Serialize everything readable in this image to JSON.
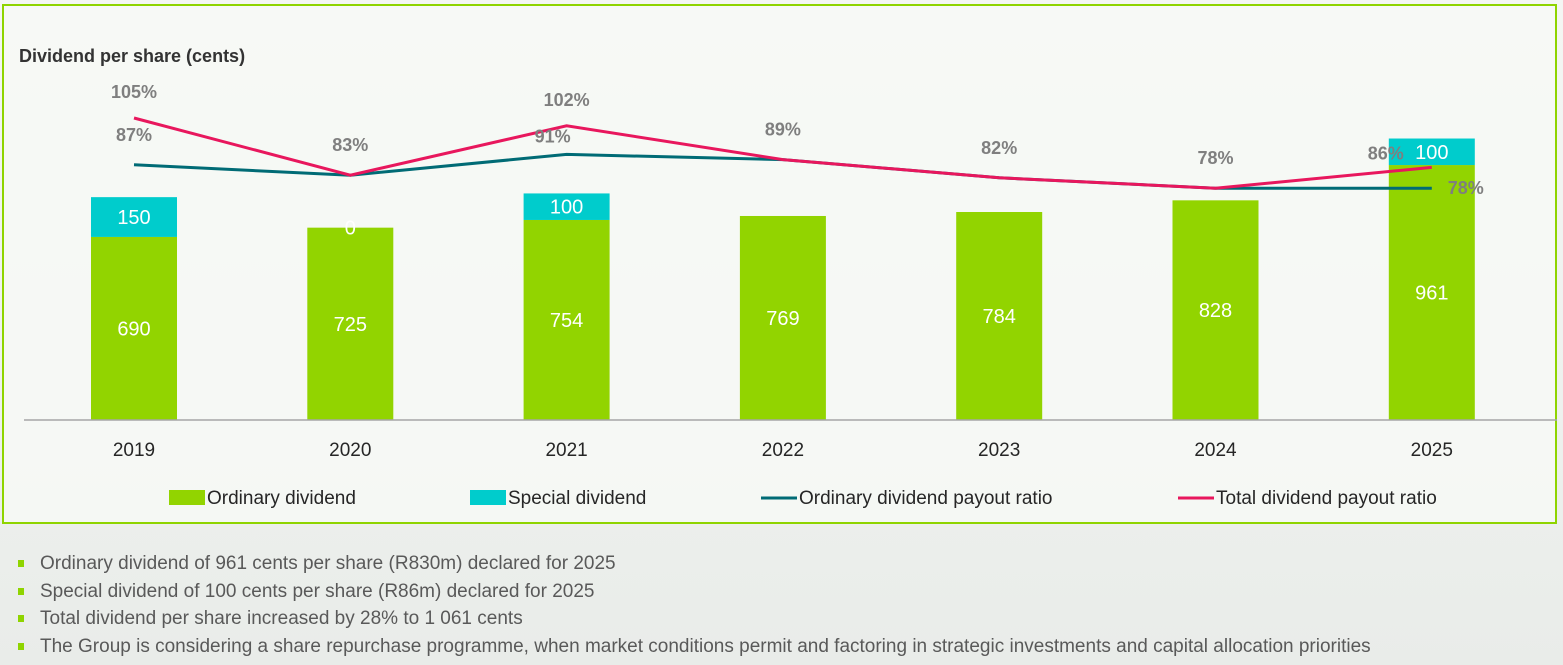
{
  "chart_data": {
    "type": "bar",
    "title": "Dividend per share (cents)",
    "categories": [
      "2019",
      "2020",
      "2021",
      "2022",
      "2023",
      "2024",
      "2025"
    ],
    "series": [
      {
        "name": "Ordinary dividend",
        "kind": "bar",
        "color": "#92d400",
        "values": [
          690,
          725,
          754,
          769,
          784,
          828,
          961
        ],
        "labels": [
          "690",
          "725",
          "754",
          "769",
          "784",
          "828",
          "961"
        ]
      },
      {
        "name": "Special dividend",
        "kind": "bar",
        "color": "#00cccc",
        "values": [
          150,
          0,
          100,
          0,
          0,
          0,
          100
        ],
        "labels": [
          "150",
          "0",
          "100",
          "",
          "",
          "",
          "100"
        ]
      },
      {
        "name": "Ordinary dividend payout ratio",
        "kind": "line",
        "color": "#006b75",
        "values": [
          87,
          83,
          91,
          89,
          82,
          78,
          78
        ],
        "labels": [
          "87%",
          "83%",
          "91%",
          "89%",
          "82%",
          "78%",
          "78%"
        ]
      },
      {
        "name": "Total dividend payout ratio",
        "kind": "line",
        "color": "#e8175d",
        "values": [
          105,
          83,
          102,
          89,
          82,
          78,
          86
        ],
        "labels": [
          "105%",
          "",
          "102%",
          "",
          "",
          "",
          "86%"
        ]
      }
    ],
    "ylim": [
      0,
      1200
    ],
    "y2lim": [
      0,
      130
    ],
    "xlabel": "",
    "ylabel": "",
    "legend_position": "bottom"
  },
  "bullets": [
    "Ordinary dividend of 961 cents per share (R830m) declared for 2025",
    "Special dividend of 100 cents per share (R86m) declared for 2025",
    "Total dividend per share increased by 28% to 1 061 cents",
    "The Group is considering a share repurchase programme, when market conditions permit and factoring in strategic investments and capital allocation priorities"
  ]
}
